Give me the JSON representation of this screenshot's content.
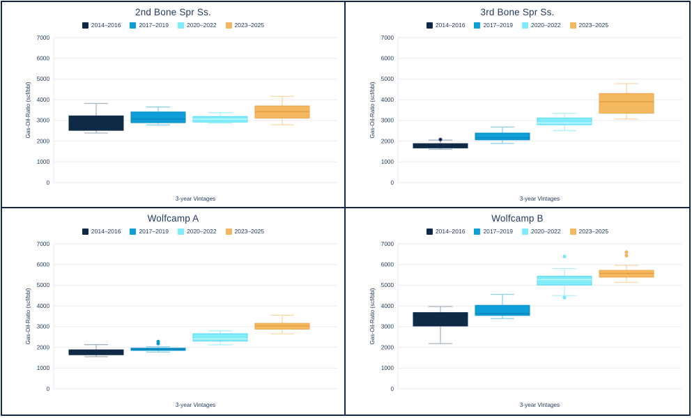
{
  "frame_color": "#13294a",
  "grid_color": "#eaeaef",
  "text_color": "#22395e",
  "palette": [
    {
      "label": "2014–2016",
      "fill": "#0e2a47",
      "edge": "#0e2a47",
      "median": "#0e2a47",
      "whisker": "#a6b5c4"
    },
    {
      "label": "2017–2019",
      "fill": "#0f9ed8",
      "edge": "#0d8fc6",
      "median": "#0b84b8",
      "whisker": "#8ad1ec"
    },
    {
      "label": "2020–2022",
      "fill": "#80ebfa",
      "edge": "#5edcf2",
      "median": "#c9f8fe",
      "whisker": "#aef1fb"
    },
    {
      "label": "2023–2025",
      "fill": "#f4b860",
      "edge": "#eda64a",
      "median": "#e59e3e",
      "whisker": "#f8d9a6"
    }
  ],
  "chart_data": [
    {
      "type": "boxplot",
      "title": "2nd Bone Spr Ss.",
      "xlabel": "3-year Vintages",
      "ylabel": "Gas-Oil-Ratio (scf/bbl)",
      "ylim": [
        0,
        7000
      ],
      "yticks": [
        0,
        1000,
        2000,
        3000,
        4000,
        5000,
        6000,
        7000
      ],
      "grid": true,
      "legend_position": "top",
      "categories": [
        "2014–2016",
        "2017–2019",
        "2020–2022",
        "2023–2025"
      ],
      "boxes": [
        {
          "low": 2390,
          "q1": 2520,
          "median": 3000,
          "q3": 3220,
          "high": 3820,
          "outliers": []
        },
        {
          "low": 2780,
          "q1": 2890,
          "median": 3060,
          "q3": 3410,
          "high": 3650,
          "outliers": []
        },
        {
          "low": 2870,
          "q1": 2920,
          "median": 3060,
          "q3": 3190,
          "high": 3380,
          "outliers": []
        },
        {
          "low": 2790,
          "q1": 3110,
          "median": 3420,
          "q3": 3700,
          "high": 4160,
          "outliers": []
        }
      ]
    },
    {
      "type": "boxplot",
      "title": "3rd Bone Spr Ss.",
      "xlabel": "3-year Vintages",
      "ylabel": "Gas-Oil-Ratio (scf/bbl)",
      "ylim": [
        0,
        7000
      ],
      "yticks": [
        0,
        1000,
        2000,
        3000,
        4000,
        5000,
        6000,
        7000
      ],
      "grid": true,
      "legend_position": "top",
      "categories": [
        "2014–2016",
        "2017–2019",
        "2020–2022",
        "2023–2025"
      ],
      "boxes": [
        {
          "low": 1600,
          "q1": 1670,
          "median": 1780,
          "q3": 1880,
          "high": 2050,
          "outliers": [
            2080
          ]
        },
        {
          "low": 1890,
          "q1": 2060,
          "median": 2160,
          "q3": 2390,
          "high": 2680,
          "outliers": []
        },
        {
          "low": 2510,
          "q1": 2790,
          "median": 2880,
          "q3": 3120,
          "high": 3340,
          "outliers": []
        },
        {
          "low": 3070,
          "q1": 3350,
          "median": 3900,
          "q3": 4300,
          "high": 4780,
          "outliers": []
        }
      ]
    },
    {
      "type": "boxplot",
      "title": "Wolfcamp A",
      "xlabel": "3-year Vintages",
      "ylabel": "Gas-Oil-Ratio (scf/bbl)",
      "ylim": [
        0,
        7000
      ],
      "yticks": [
        0,
        1000,
        2000,
        3000,
        4000,
        5000,
        6000,
        7000
      ],
      "grid": true,
      "legend_position": "top",
      "categories": [
        "2014–2016",
        "2017–2019",
        "2020–2022",
        "2023–2025"
      ],
      "boxes": [
        {
          "low": 1550,
          "q1": 1640,
          "median": 1760,
          "q3": 1880,
          "high": 2130,
          "outliers": []
        },
        {
          "low": 1770,
          "q1": 1850,
          "median": 1910,
          "q3": 1960,
          "high": 2030,
          "outliers": [
            2180,
            2280
          ]
        },
        {
          "low": 2120,
          "q1": 2300,
          "median": 2410,
          "q3": 2660,
          "high": 2800,
          "outliers": []
        },
        {
          "low": 2650,
          "q1": 2880,
          "median": 3030,
          "q3": 3160,
          "high": 3550,
          "outliers": []
        }
      ]
    },
    {
      "type": "boxplot",
      "title": "Wolfcamp B",
      "xlabel": "3-year Vintages",
      "ylabel": "Gas-Oil-Ratio (scf/bbl)",
      "ylim": [
        0,
        7000
      ],
      "yticks": [
        0,
        1000,
        2000,
        3000,
        4000,
        5000,
        6000,
        7000
      ],
      "grid": true,
      "legend_position": "top",
      "categories": [
        "2014–2016",
        "2017–2019",
        "2020–2022",
        "2023–2025"
      ],
      "boxes": [
        {
          "low": 2180,
          "q1": 3030,
          "median": 3450,
          "q3": 3680,
          "high": 3970,
          "outliers": []
        },
        {
          "low": 3390,
          "q1": 3540,
          "median": 3630,
          "q3": 4030,
          "high": 4560,
          "outliers": []
        },
        {
          "low": 4500,
          "q1": 5010,
          "median": 5270,
          "q3": 5440,
          "high": 5800,
          "outliers": [
            6390,
            4400
          ]
        },
        {
          "low": 5140,
          "q1": 5390,
          "median": 5570,
          "q3": 5720,
          "high": 5960,
          "outliers": [
            6430,
            6600
          ]
        }
      ]
    }
  ]
}
